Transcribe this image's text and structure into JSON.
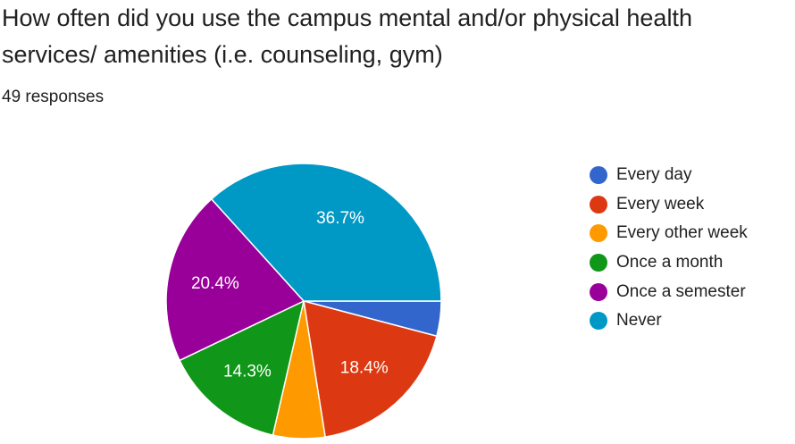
{
  "question": {
    "title": "How often did you use the campus mental and/or physical health services/ amenities (i.e. counseling, gym)",
    "responses": "49 responses"
  },
  "chart_data": {
    "type": "pie",
    "title": "How often did you use the campus mental and/or physical health services/ amenities (i.e. counseling, gym)",
    "categories": [
      "Every day",
      "Every week",
      "Every other week",
      "Once a month",
      "Once a semester",
      "Never"
    ],
    "values": [
      4.1,
      18.4,
      6.1,
      14.3,
      20.4,
      36.7
    ],
    "value_labels": [
      "",
      "18.4%",
      "",
      "14.3%",
      "20.4%",
      "36.7%"
    ],
    "colors": [
      "#3366cc",
      "#dc3912",
      "#ff9900",
      "#109618",
      "#990099",
      "#0099c6"
    ],
    "start_angle": "3 o'clock",
    "direction": "clockwise",
    "legend_position": "right"
  }
}
